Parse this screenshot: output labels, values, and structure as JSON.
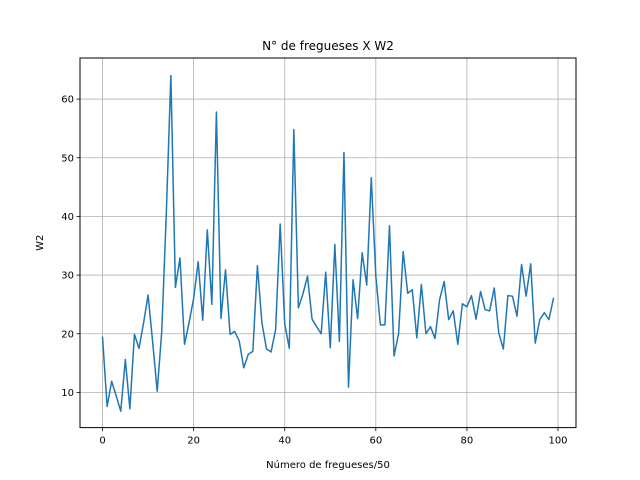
{
  "chart_data": {
    "type": "line",
    "title": "N° de fregueses X W2",
    "xlabel": "Número de fregueses/50",
    "ylabel": "W2",
    "xlim": [
      -4.95,
      103.95
    ],
    "ylim": [
      4.0,
      67.0
    ],
    "xticks": [
      0,
      20,
      40,
      60,
      80,
      100
    ],
    "yticks": [
      10,
      20,
      30,
      40,
      50,
      60
    ],
    "grid": true,
    "line_color": "#1f77b4",
    "series": [
      {
        "x": [
          0,
          1,
          2,
          3,
          4,
          5,
          6,
          7,
          8,
          9,
          10,
          11,
          12,
          13,
          14,
          15,
          16,
          17,
          18,
          19,
          20,
          21,
          22,
          23,
          24,
          25,
          26,
          27,
          28,
          29,
          30,
          31,
          32,
          33,
          34,
          35,
          36,
          37,
          38,
          39,
          40,
          41,
          42,
          43,
          44,
          45,
          46,
          47,
          48,
          49,
          50,
          51,
          52,
          53,
          54,
          55,
          56,
          57,
          58,
          59,
          60,
          61,
          62,
          63,
          64,
          65,
          66,
          67,
          68,
          69,
          70,
          71,
          72,
          73,
          74,
          75,
          76,
          77,
          78,
          79,
          80,
          81,
          82,
          83,
          84,
          85,
          86,
          87,
          88,
          89,
          90,
          91,
          92,
          93,
          94,
          95,
          96,
          97,
          98,
          99
        ],
        "values": [
          19.4,
          7.6,
          11.9,
          9.4,
          6.8,
          15.6,
          7.2,
          19.9,
          17.5,
          21.8,
          26.6,
          18.6,
          10.2,
          20.4,
          40.5,
          64.0,
          27.9,
          32.9,
          18.2,
          21.9,
          26.0,
          32.3,
          22.3,
          37.7,
          25.0,
          57.8,
          22.6,
          30.9,
          19.9,
          20.4,
          18.8,
          14.2,
          16.5,
          17.0,
          31.6,
          21.8,
          17.4,
          16.9,
          20.7,
          38.7,
          21.7,
          17.5,
          54.8,
          24.4,
          26.8,
          29.8,
          22.5,
          21.2,
          20.0,
          30.5,
          17.6,
          35.2,
          18.7,
          50.9,
          10.9,
          29.2,
          22.6,
          33.8,
          28.3,
          46.6,
          29.8,
          21.5,
          21.5,
          38.4,
          16.2,
          20.0,
          34.0,
          26.9,
          27.5,
          19.3,
          28.4,
          20.0,
          21.2,
          19.2,
          25.8,
          28.9,
          22.4,
          23.9,
          18.2,
          25.1,
          24.6,
          26.5,
          22.5,
          27.2,
          24.1,
          23.9,
          27.8,
          20.1,
          17.4,
          26.5,
          26.4,
          23.0,
          31.8,
          26.4,
          31.9,
          18.4,
          22.4,
          23.6,
          22.4,
          26.0
        ]
      }
    ]
  }
}
